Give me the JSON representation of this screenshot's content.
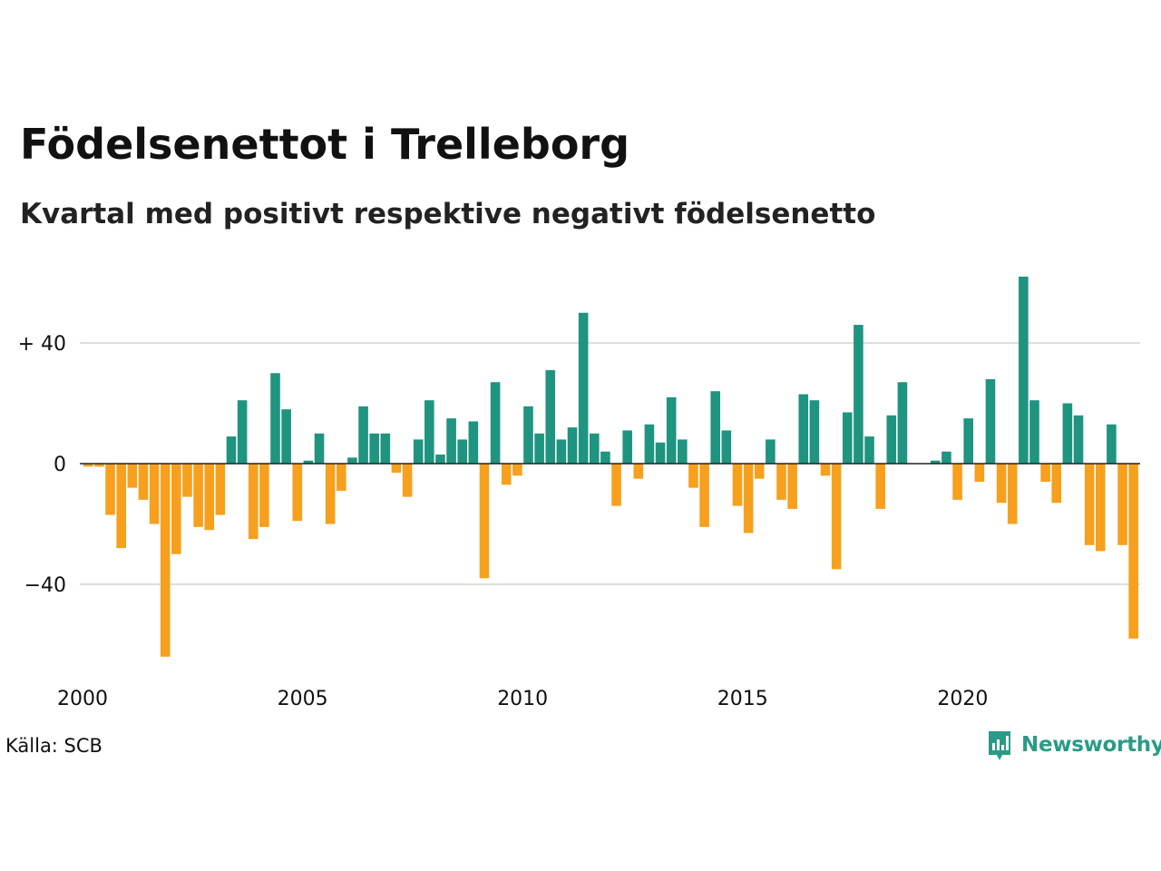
{
  "title": "Födelsenettot i Trelleborg",
  "subtitle": "Kvartal med positivt respektive negativt födelsenetto",
  "source": "Källa: SCB",
  "brand": "Newsworthy",
  "colors": {
    "positive": "#1f9480",
    "negative": "#f6a01e",
    "grid": "#dddddd",
    "baseline": "#222222",
    "brand": "#2a9b86"
  },
  "icons": {
    "brand_logo": "newsworthy-chart-bubble-icon"
  },
  "chart_data": {
    "type": "bar",
    "x_start": "2000 Q1",
    "frequency": "quarterly",
    "ylim": [
      -70,
      70
    ],
    "y_ticks": [
      {
        "value": 40,
        "label": "+ 40"
      },
      {
        "value": 0,
        "label": "0"
      },
      {
        "value": -40,
        "label": "−40"
      }
    ],
    "x_ticks": [
      {
        "year": 2000,
        "label": "2000"
      },
      {
        "year": 2005,
        "label": "2005"
      },
      {
        "year": 2010,
        "label": "2010"
      },
      {
        "year": 2015,
        "label": "2015"
      },
      {
        "year": 2020,
        "label": "2020"
      }
    ],
    "grid": true,
    "legend": "none",
    "values": [
      -1,
      -1,
      -17,
      -28,
      -8,
      -12,
      -20,
      -64,
      -30,
      -11,
      -21,
      -22,
      -17,
      9,
      21,
      -25,
      -21,
      30,
      18,
      -19,
      1,
      10,
      -20,
      -9,
      2,
      19,
      10,
      10,
      -3,
      -11,
      8,
      21,
      3,
      15,
      8,
      14,
      -38,
      27,
      -7,
      -4,
      19,
      10,
      31,
      8,
      12,
      50,
      10,
      4,
      -14,
      11,
      -5,
      13,
      7,
      22,
      8,
      -8,
      -21,
      24,
      11,
      -14,
      -23,
      -5,
      8,
      -12,
      -15,
      23,
      21,
      -4,
      -35,
      17,
      46,
      9,
      -15,
      16,
      27,
      0,
      0,
      1,
      4,
      -12,
      15,
      -6,
      28,
      -13,
      -20,
      62,
      21,
      -6,
      -13,
      20,
      16,
      -27,
      -29,
      13,
      -27,
      -58
    ]
  }
}
